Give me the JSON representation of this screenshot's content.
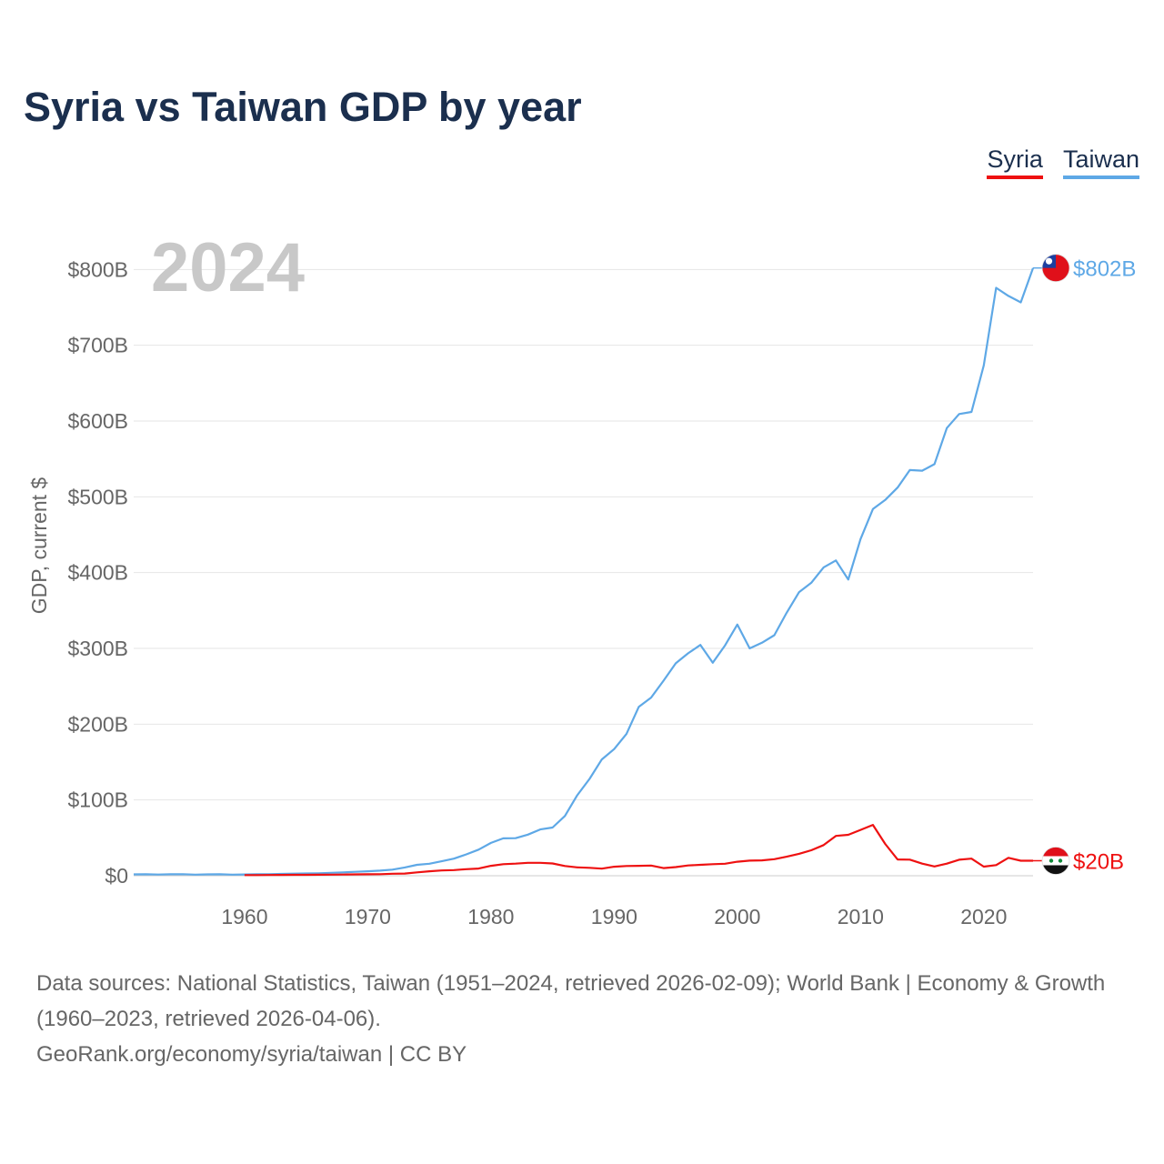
{
  "title": "Syria vs Taiwan GDP by year",
  "legend": {
    "syria": "Syria",
    "taiwan": "Taiwan"
  },
  "chart_data": {
    "type": "line",
    "title": "Syria vs Taiwan GDP by year",
    "ylabel": "GDP, current $",
    "xlabel": "",
    "year_watermark": "2024",
    "ylim": [
      0,
      840
    ],
    "xlim": [
      1951,
      2024
    ],
    "y_unit": "billions USD",
    "yticks": [
      {
        "value": 0,
        "label": "$0"
      },
      {
        "value": 100,
        "label": "$100B"
      },
      {
        "value": 200,
        "label": "$200B"
      },
      {
        "value": 300,
        "label": "$300B"
      },
      {
        "value": 400,
        "label": "$400B"
      },
      {
        "value": 500,
        "label": "$500B"
      },
      {
        "value": 600,
        "label": "$600B"
      },
      {
        "value": 700,
        "label": "$700B"
      },
      {
        "value": 800,
        "label": "$800B"
      }
    ],
    "xticks": [
      {
        "value": 1960,
        "label": "1960"
      },
      {
        "value": 1970,
        "label": "1970"
      },
      {
        "value": 1980,
        "label": "1980"
      },
      {
        "value": 1990,
        "label": "1990"
      },
      {
        "value": 2000,
        "label": "2000"
      },
      {
        "value": 2010,
        "label": "2010"
      },
      {
        "value": 2020,
        "label": "2020"
      }
    ],
    "grid": true,
    "series": [
      {
        "name": "Taiwan",
        "color": "#5ea8e6",
        "end_label": "$802B",
        "flag": "taiwan-flag-icon",
        "x": [
          1951,
          1952,
          1953,
          1954,
          1955,
          1956,
          1957,
          1958,
          1959,
          1960,
          1961,
          1962,
          1963,
          1964,
          1965,
          1966,
          1967,
          1968,
          1969,
          1970,
          1971,
          1972,
          1973,
          1974,
          1975,
          1976,
          1977,
          1978,
          1979,
          1980,
          1981,
          1982,
          1983,
          1984,
          1985,
          1986,
          1987,
          1988,
          1989,
          1990,
          1991,
          1992,
          1993,
          1994,
          1995,
          1996,
          1997,
          1998,
          1999,
          2000,
          2001,
          2002,
          2003,
          2004,
          2005,
          2006,
          2007,
          2008,
          2009,
          2010,
          2011,
          2012,
          2013,
          2014,
          2015,
          2016,
          2017,
          2018,
          2019,
          2020,
          2021,
          2022,
          2023,
          2024
        ],
        "values": [
          1.8,
          1.9,
          1.6,
          1.9,
          2.1,
          1.5,
          1.8,
          1.9,
          1.5,
          1.7,
          1.9,
          2.1,
          2.4,
          2.8,
          3.0,
          3.3,
          3.8,
          4.5,
          5.2,
          5.9,
          6.7,
          8.0,
          10.9,
          14.4,
          15.8,
          19.1,
          22.6,
          28.2,
          34.5,
          43.3,
          49.3,
          49.6,
          54.3,
          61.1,
          63.6,
          78.8,
          106.1,
          127.8,
          153.5,
          167.2,
          187.1,
          223.0,
          235.1,
          257.3,
          280.3,
          293.5,
          304.6,
          281.0,
          304.0,
          331.4,
          300.0,
          307.5,
          317.4,
          346.9,
          374.1,
          386.5,
          406.9,
          416.0,
          390.8,
          444.3,
          483.9,
          495.8,
          512.2,
          535.3,
          534.5,
          543.1,
          590.7,
          609.3,
          612.0,
          673.3,
          775.8,
          765.1,
          756.6,
          802.0
        ]
      },
      {
        "name": "Syria",
        "color": "#ee1111",
        "end_label": "$20B",
        "flag": "syria-flag-icon",
        "x": [
          1960,
          1961,
          1962,
          1963,
          1964,
          1965,
          1966,
          1967,
          1968,
          1969,
          1970,
          1971,
          1972,
          1973,
          1974,
          1975,
          1976,
          1977,
          1978,
          1979,
          1980,
          1981,
          1982,
          1983,
          1984,
          1985,
          1986,
          1987,
          1988,
          1989,
          1990,
          1991,
          1992,
          1993,
          1994,
          1995,
          1996,
          1997,
          1998,
          1999,
          2000,
          2001,
          2002,
          2003,
          2004,
          2005,
          2006,
          2007,
          2008,
          2009,
          2010,
          2011,
          2012,
          2013,
          2014,
          2015,
          2016,
          2017,
          2018,
          2019,
          2020,
          2021,
          2022,
          2023,
          2024
        ],
        "values": [
          0.9,
          0.9,
          1.0,
          1.1,
          1.2,
          1.2,
          1.3,
          1.4,
          1.6,
          1.8,
          1.9,
          2.1,
          2.6,
          2.9,
          4.5,
          5.9,
          7.0,
          7.4,
          8.6,
          9.5,
          13.1,
          15.2,
          16.0,
          17.1,
          17.0,
          16.2,
          12.9,
          11.0,
          10.5,
          9.4,
          11.9,
          12.9,
          13.1,
          13.5,
          10.1,
          11.4,
          13.6,
          14.4,
          15.2,
          15.8,
          18.5,
          19.9,
          20.3,
          21.8,
          25.1,
          28.9,
          33.6,
          40.4,
          52.6,
          54.0,
          60.5,
          67.1,
          42.0,
          21.5,
          21.3,
          16.0,
          12.3,
          16.0,
          21.1,
          22.6,
          12.0,
          14.0,
          23.6,
          19.8,
          19.8
        ]
      }
    ]
  },
  "footer": {
    "sources": "Data sources: National Statistics, Taiwan (1951–2024, retrieved 2026-02-09); World Bank | Economy & Growth (1960–2023, retrieved 2026-04-06).",
    "credit": "GeoRank.org/economy/syria/taiwan | CC BY"
  }
}
